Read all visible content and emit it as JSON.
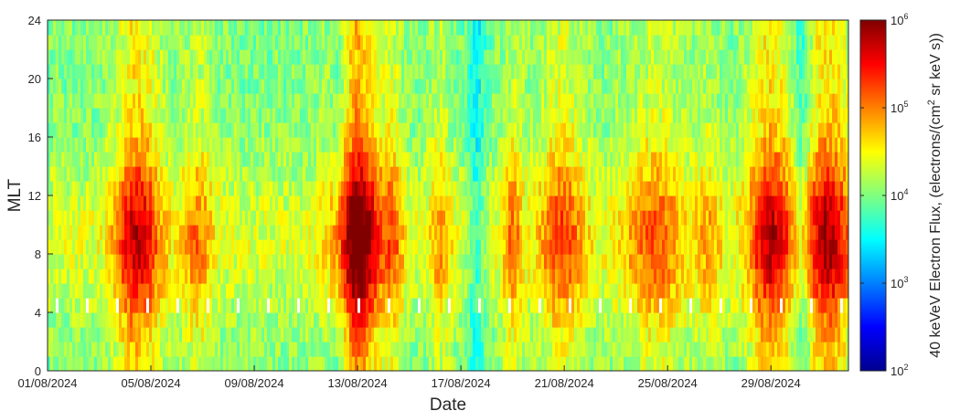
{
  "chart_data": {
    "type": "heatmap",
    "title": "",
    "xlabel": "Date",
    "ylabel": "MLT",
    "x_tick_labels": [
      "01/08/2024",
      "05/08/2024",
      "09/08/2024",
      "13/08/2024",
      "17/08/2024",
      "21/08/2024",
      "25/08/2024",
      "29/08/2024"
    ],
    "x_tick_days": [
      1,
      5,
      9,
      13,
      17,
      21,
      25,
      29
    ],
    "xlim_days": [
      1,
      32
    ],
    "y_ticks": [
      0,
      4,
      8,
      12,
      16,
      20,
      24
    ],
    "ylim": [
      0,
      24
    ],
    "colormap": "jet",
    "colorbar": {
      "label": "40 keVeV Electron Flux, (electrons/(cm² sr keV s))",
      "label_parts": [
        "40 keVeV Electron Flux, (electrons/(cm",
        "2",
        " sr keV s))"
      ],
      "scale": "log",
      "range_exponents": [
        2,
        6
      ],
      "tick_base": "10",
      "tick_exponents": [
        "2",
        "3",
        "4",
        "5",
        "6"
      ]
    },
    "background_log_flux": 4.3,
    "peak_log_flux_examples": [
      {
        "day": 4.5,
        "mlt": 10,
        "log_flux": 5.5
      },
      {
        "day": 13.0,
        "mlt": 8,
        "log_flux": 6.0
      },
      {
        "day": 29.0,
        "mlt": 10,
        "log_flux": 5.5
      },
      {
        "day": 31.2,
        "mlt": 8,
        "log_flux": 5.6
      }
    ],
    "low_flux_bands": [
      {
        "day": 12.3,
        "log_flux": 3.9
      },
      {
        "day": 17.6,
        "log_flux": 3.8
      },
      {
        "day": 30.2,
        "log_flux": 3.8
      }
    ],
    "missing_data_mlt": [
      3.5,
      5.0
    ]
  }
}
